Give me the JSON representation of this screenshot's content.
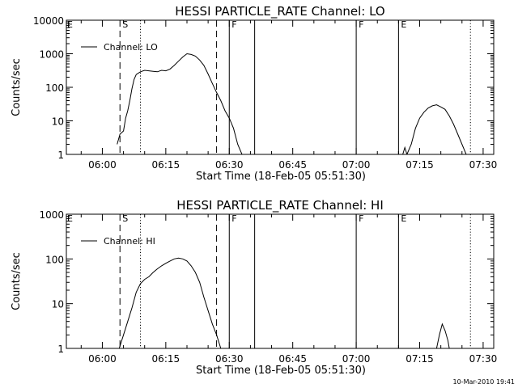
{
  "footer": "10-Mar-2010 19:41",
  "chart_data": [
    {
      "type": "line",
      "title": "HESSI PARTICLE_RATE Channel: LO",
      "xlabel": "Start Time (18-Feb-05 05:51:30)",
      "ylabel": "Counts/sec",
      "yscale": "log",
      "ylim": [
        1,
        10000
      ],
      "xlim": [
        "05:51:30",
        "07:32:30"
      ],
      "x_ticks": [
        "06:00",
        "06:15",
        "06:30",
        "06:45",
        "07:00",
        "07:15",
        "07:30"
      ],
      "y_ticks": [
        "1",
        "10",
        "100",
        "1000",
        "10000"
      ],
      "legend": {
        "label": "Channel: LO",
        "position": "top-left"
      },
      "vlines": [
        {
          "time": "06:04:10",
          "style": "dashed",
          "label": "S"
        },
        {
          "time": "06:09:00",
          "style": "dotted",
          "label": ""
        },
        {
          "time": "06:27:00",
          "style": "dashed",
          "label": ""
        },
        {
          "time": "06:30:00",
          "style": "solid",
          "label": "F"
        },
        {
          "time": "06:36:00",
          "style": "solid",
          "label": ""
        },
        {
          "time": "07:00:00",
          "style": "solid",
          "label": "F"
        },
        {
          "time": "07:10:00",
          "style": "solid",
          "label": "E"
        },
        {
          "time": "07:27:00",
          "style": "dotted",
          "label": ""
        }
      ],
      "edge_labels": [
        {
          "time": "05:51:30",
          "label": "E"
        }
      ],
      "series": [
        {
          "segments": [
            [
              [
                "06:03:30",
                2
              ],
              [
                "06:04:10",
                4
              ],
              [
                "06:05:00",
                5
              ],
              [
                "06:05:30",
                12
              ],
              [
                "06:06:00",
                20
              ],
              [
                "06:06:30",
                40
              ],
              [
                "06:07:00",
                90
              ],
              [
                "06:07:30",
                170
              ],
              [
                "06:08:00",
                240
              ],
              [
                "06:09:00",
                290
              ],
              [
                "06:10:00",
                320
              ],
              [
                "06:11:00",
                310
              ],
              [
                "06:12:00",
                300
              ],
              [
                "06:13:00",
                290
              ],
              [
                "06:14:00",
                320
              ],
              [
                "06:15:00",
                310
              ],
              [
                "06:16:00",
                350
              ],
              [
                "06:17:00",
                450
              ],
              [
                "06:18:00",
                600
              ],
              [
                "06:19:00",
                800
              ],
              [
                "06:20:00",
                1000
              ],
              [
                "06:21:00",
                950
              ],
              [
                "06:22:00",
                850
              ],
              [
                "06:23:00",
                650
              ],
              [
                "06:24:00",
                450
              ],
              [
                "06:25:00",
                250
              ],
              [
                "06:26:00",
                130
              ],
              [
                "06:27:00",
                70
              ],
              [
                "06:28:00",
                40
              ],
              [
                "06:29:00",
                20
              ],
              [
                "06:30:00",
                12
              ],
              [
                "06:31:00",
                6
              ],
              [
                "06:32:00",
                2
              ],
              [
                "06:33:00",
                1
              ]
            ],
            [
              [
                "07:11:00",
                1
              ],
              [
                "07:11:30",
                1.6
              ],
              [
                "07:12:00",
                1
              ],
              [
                "07:13:00",
                2
              ],
              [
                "07:14:00",
                6
              ],
              [
                "07:15:00",
                12
              ],
              [
                "07:16:00",
                18
              ],
              [
                "07:17:00",
                24
              ],
              [
                "07:18:00",
                28
              ],
              [
                "07:19:00",
                30
              ],
              [
                "07:20:00",
                26
              ],
              [
                "07:21:00",
                22
              ],
              [
                "07:22:00",
                14
              ],
              [
                "07:23:00",
                8
              ],
              [
                "07:24:00",
                4
              ],
              [
                "07:25:00",
                2
              ],
              [
                "07:26:00",
                1
              ]
            ]
          ]
        }
      ]
    },
    {
      "type": "line",
      "title": "HESSI PARTICLE_RATE Channel: HI",
      "xlabel": "Start Time (18-Feb-05 05:51:30)",
      "ylabel": "Counts/sec",
      "yscale": "log",
      "ylim": [
        1,
        1000
      ],
      "xlim": [
        "05:51:30",
        "07:32:30"
      ],
      "x_ticks": [
        "06:00",
        "06:15",
        "06:30",
        "06:45",
        "07:00",
        "07:15",
        "07:30"
      ],
      "y_ticks": [
        "1",
        "10",
        "100",
        "1000"
      ],
      "legend": {
        "label": "Channel: HI",
        "position": "top-left"
      },
      "vlines": [
        {
          "time": "06:04:10",
          "style": "dashed",
          "label": "S"
        },
        {
          "time": "06:09:00",
          "style": "dotted",
          "label": ""
        },
        {
          "time": "06:27:00",
          "style": "dashed",
          "label": ""
        },
        {
          "time": "06:30:00",
          "style": "solid",
          "label": "F"
        },
        {
          "time": "06:36:00",
          "style": "solid",
          "label": ""
        },
        {
          "time": "07:00:00",
          "style": "solid",
          "label": "F"
        },
        {
          "time": "07:10:00",
          "style": "solid",
          "label": "E"
        },
        {
          "time": "07:27:00",
          "style": "dotted",
          "label": ""
        }
      ],
      "edge_labels": [
        {
          "time": "05:51:30",
          "label": "E"
        }
      ],
      "series": [
        {
          "segments": [
            [
              [
                "06:04:00",
                1
              ],
              [
                "06:05:00",
                2
              ],
              [
                "06:06:00",
                4
              ],
              [
                "06:07:00",
                8
              ],
              [
                "06:08:00",
                18
              ],
              [
                "06:09:00",
                28
              ],
              [
                "06:10:00",
                35
              ],
              [
                "06:11:00",
                40
              ],
              [
                "06:12:00",
                50
              ],
              [
                "06:13:00",
                60
              ],
              [
                "06:14:00",
                70
              ],
              [
                "06:15:00",
                80
              ],
              [
                "06:16:00",
                90
              ],
              [
                "06:17:00",
                100
              ],
              [
                "06:18:00",
                105
              ],
              [
                "06:19:00",
                100
              ],
              [
                "06:20:00",
                90
              ],
              [
                "06:21:00",
                70
              ],
              [
                "06:22:00",
                50
              ],
              [
                "06:23:00",
                30
              ],
              [
                "06:24:00",
                14
              ],
              [
                "06:25:00",
                7
              ],
              [
                "06:26:00",
                3.5
              ],
              [
                "06:27:00",
                2
              ],
              [
                "06:28:00",
                1
              ]
            ],
            [
              [
                "07:19:00",
                1
              ],
              [
                "07:19:40",
                2
              ],
              [
                "07:20:20",
                3.5
              ],
              [
                "07:21:00",
                2.5
              ],
              [
                "07:21:40",
                1.5
              ],
              [
                "07:22:00",
                1
              ]
            ]
          ]
        }
      ]
    }
  ]
}
